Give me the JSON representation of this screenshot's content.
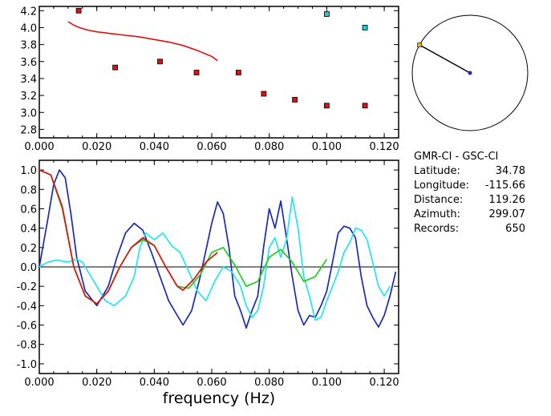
{
  "chart_data": [
    {
      "type": "scatter",
      "xlim": [
        0.0,
        0.125
      ],
      "ylim": [
        2.7,
        4.25
      ],
      "x_tick_labels": [
        "0.000",
        "0.020",
        "0.040",
        "0.060",
        "0.080",
        "0.100",
        "0.120"
      ],
      "x_tick_values": [
        0.0,
        0.02,
        0.04,
        0.06,
        0.08,
        0.1,
        0.12
      ],
      "y_tick_labels": [
        "2.8",
        "3.0",
        "3.2",
        "3.4",
        "3.6",
        "3.8",
        "4.0",
        "4.2"
      ],
      "y_tick_values": [
        2.8,
        3.0,
        3.2,
        3.4,
        3.6,
        3.8,
        4.0,
        4.2
      ],
      "grid": false,
      "points": [
        {
          "x": 0.0137,
          "y": 4.2,
          "color": "#dd1111"
        },
        {
          "x": 0.0264,
          "y": 3.53,
          "color": "#dd1111"
        },
        {
          "x": 0.042,
          "y": 3.6,
          "color": "#dd1111"
        },
        {
          "x": 0.0547,
          "y": 3.47,
          "color": "#dd1111"
        },
        {
          "x": 0.0693,
          "y": 3.47,
          "color": "#dd1111"
        },
        {
          "x": 0.0781,
          "y": 3.22,
          "color": "#dd1111"
        },
        {
          "x": 0.0889,
          "y": 3.15,
          "color": "#dd1111"
        },
        {
          "x": 0.1,
          "y": 3.08,
          "color": "#dd1111"
        },
        {
          "x": 0.1133,
          "y": 3.08,
          "color": "#dd1111"
        },
        {
          "x": 0.1,
          "y": 4.16,
          "color": "#22cccc"
        },
        {
          "x": 0.1133,
          "y": 4.0,
          "color": "#22cccc"
        }
      ],
      "line": {
        "color": "#dd1111",
        "x": [
          0.01,
          0.012,
          0.014,
          0.017,
          0.02,
          0.025,
          0.03,
          0.035,
          0.04,
          0.045,
          0.05,
          0.055,
          0.06,
          0.062
        ],
        "y": [
          4.07,
          4.03,
          4.0,
          3.97,
          3.95,
          3.93,
          3.91,
          3.89,
          3.86,
          3.83,
          3.79,
          3.73,
          3.66,
          3.61
        ]
      }
    },
    {
      "type": "line",
      "xlim": [
        0.0,
        0.125
      ],
      "ylim": [
        -1.1,
        1.1
      ],
      "x_tick_labels": [
        "0.000",
        "0.020",
        "0.040",
        "0.060",
        "0.080",
        "0.100",
        "0.120"
      ],
      "x_tick_values": [
        0.0,
        0.02,
        0.04,
        0.06,
        0.08,
        0.1,
        0.12
      ],
      "y_tick_labels": [
        "1.0",
        "0.8",
        "0.6",
        "0.4",
        "0.2",
        "0.0",
        "-0.2",
        "-0.4",
        "-0.6",
        "-0.8",
        "-1.0"
      ],
      "y_tick_values": [
        1.0,
        0.8,
        0.6,
        0.4,
        0.2,
        0.0,
        -0.2,
        -0.4,
        -0.6,
        -0.8,
        -1.0
      ],
      "xlabel": "frequency (Hz)",
      "zero_line": true,
      "grid": false,
      "series": [
        {
          "color": "#1a2bb0",
          "x": [
            0.0,
            0.003,
            0.005,
            0.007,
            0.009,
            0.011,
            0.013,
            0.016,
            0.02,
            0.024,
            0.027,
            0.03,
            0.033,
            0.036,
            0.039,
            0.042,
            0.045,
            0.048,
            0.05,
            0.053,
            0.056,
            0.06,
            0.062,
            0.064,
            0.066,
            0.068,
            0.07,
            0.072,
            0.074,
            0.076,
            0.078,
            0.08,
            0.082,
            0.084,
            0.086,
            0.088,
            0.09,
            0.092,
            0.094,
            0.096,
            0.098,
            0.1,
            0.102,
            0.104,
            0.106,
            0.108,
            0.11,
            0.112,
            0.114,
            0.116,
            0.118,
            0.12,
            0.122,
            0.124
          ],
          "y": [
            0.0,
            0.5,
            0.85,
            1.0,
            0.92,
            0.55,
            0.1,
            -0.25,
            -0.4,
            -0.2,
            0.1,
            0.35,
            0.45,
            0.38,
            0.15,
            -0.1,
            -0.35,
            -0.5,
            -0.6,
            -0.45,
            -0.1,
            0.45,
            0.67,
            0.55,
            0.2,
            -0.3,
            -0.45,
            -0.63,
            -0.45,
            -0.3,
            0.2,
            0.6,
            0.4,
            0.68,
            0.3,
            -0.1,
            -0.45,
            -0.6,
            -0.5,
            -0.52,
            -0.4,
            -0.25,
            0.05,
            0.35,
            0.42,
            0.4,
            0.3,
            -0.1,
            -0.4,
            -0.52,
            -0.62,
            -0.5,
            -0.3,
            -0.05
          ]
        },
        {
          "color": "#22e6ee",
          "x": [
            0.0,
            0.003,
            0.006,
            0.01,
            0.013,
            0.015,
            0.017,
            0.02,
            0.023,
            0.026,
            0.03,
            0.033,
            0.035,
            0.037,
            0.04,
            0.043,
            0.046,
            0.049,
            0.052,
            0.055,
            0.058,
            0.061,
            0.064,
            0.067,
            0.07,
            0.072,
            0.074,
            0.076,
            0.078,
            0.08,
            0.082,
            0.084,
            0.086,
            0.088,
            0.09,
            0.092,
            0.094,
            0.096,
            0.098,
            0.1,
            0.102,
            0.104,
            0.106,
            0.108,
            0.11,
            0.112,
            0.114,
            0.116,
            0.118,
            0.12,
            0.122
          ],
          "y": [
            0.0,
            0.05,
            0.07,
            0.05,
            0.08,
            0.05,
            -0.05,
            -0.2,
            -0.35,
            -0.4,
            -0.3,
            -0.1,
            0.2,
            0.35,
            0.28,
            0.35,
            0.22,
            0.15,
            -0.05,
            -0.25,
            -0.35,
            -0.15,
            0.0,
            -0.05,
            -0.2,
            -0.4,
            -0.52,
            -0.45,
            -0.2,
            0.2,
            0.3,
            0.1,
            0.28,
            0.72,
            0.4,
            -0.1,
            -0.3,
            -0.55,
            -0.52,
            -0.35,
            -0.2,
            -0.05,
            0.15,
            0.25,
            0.4,
            0.38,
            0.28,
            0.05,
            -0.2,
            -0.3,
            -0.2
          ]
        },
        {
          "color": "#22cc22",
          "x": [
            0.0,
            0.004,
            0.008,
            0.012,
            0.016,
            0.02,
            0.024,
            0.028,
            0.032,
            0.036,
            0.04,
            0.044,
            0.048,
            0.052,
            0.056,
            0.06,
            0.064,
            0.068,
            0.072,
            0.076,
            0.08,
            0.084,
            0.088,
            0.092,
            0.096,
            0.1
          ],
          "y": [
            1.0,
            0.95,
            0.6,
            0.0,
            -0.3,
            -0.38,
            -0.25,
            0.0,
            0.2,
            0.28,
            0.22,
            0.0,
            -0.2,
            -0.22,
            -0.08,
            0.15,
            0.2,
            0.02,
            -0.2,
            -0.15,
            0.1,
            0.18,
            0.05,
            -0.15,
            -0.1,
            0.08
          ]
        },
        {
          "color": "#dd1111",
          "x": [
            0.0,
            0.004,
            0.008,
            0.012,
            0.016,
            0.02,
            0.024,
            0.028,
            0.032,
            0.036,
            0.04,
            0.044,
            0.048,
            0.05,
            0.054,
            0.058,
            0.062
          ],
          "y": [
            1.0,
            0.95,
            0.62,
            0.0,
            -0.3,
            -0.38,
            -0.25,
            0.0,
            0.2,
            0.3,
            0.22,
            0.0,
            -0.2,
            -0.24,
            -0.12,
            0.05,
            0.15
          ]
        }
      ]
    },
    {
      "type": "other",
      "description": "azimuth",
      "azimuth_deg": 299.07,
      "circle_color": "#000000",
      "line_color": "#000000",
      "station_marker_color": "#e6b800",
      "center_marker_color": "#1a2bb0"
    }
  ],
  "info": {
    "stations": "GMR-CI  -  GSC-CI",
    "rows": [
      {
        "label": "Latitude:",
        "value": "34.78"
      },
      {
        "label": "Longitude:",
        "value": "-115.66"
      },
      {
        "label": "Distance:",
        "value": "119.26"
      },
      {
        "label": "Azimuth:",
        "value": "299.07"
      },
      {
        "label": "Records:",
        "value": "650"
      }
    ]
  }
}
